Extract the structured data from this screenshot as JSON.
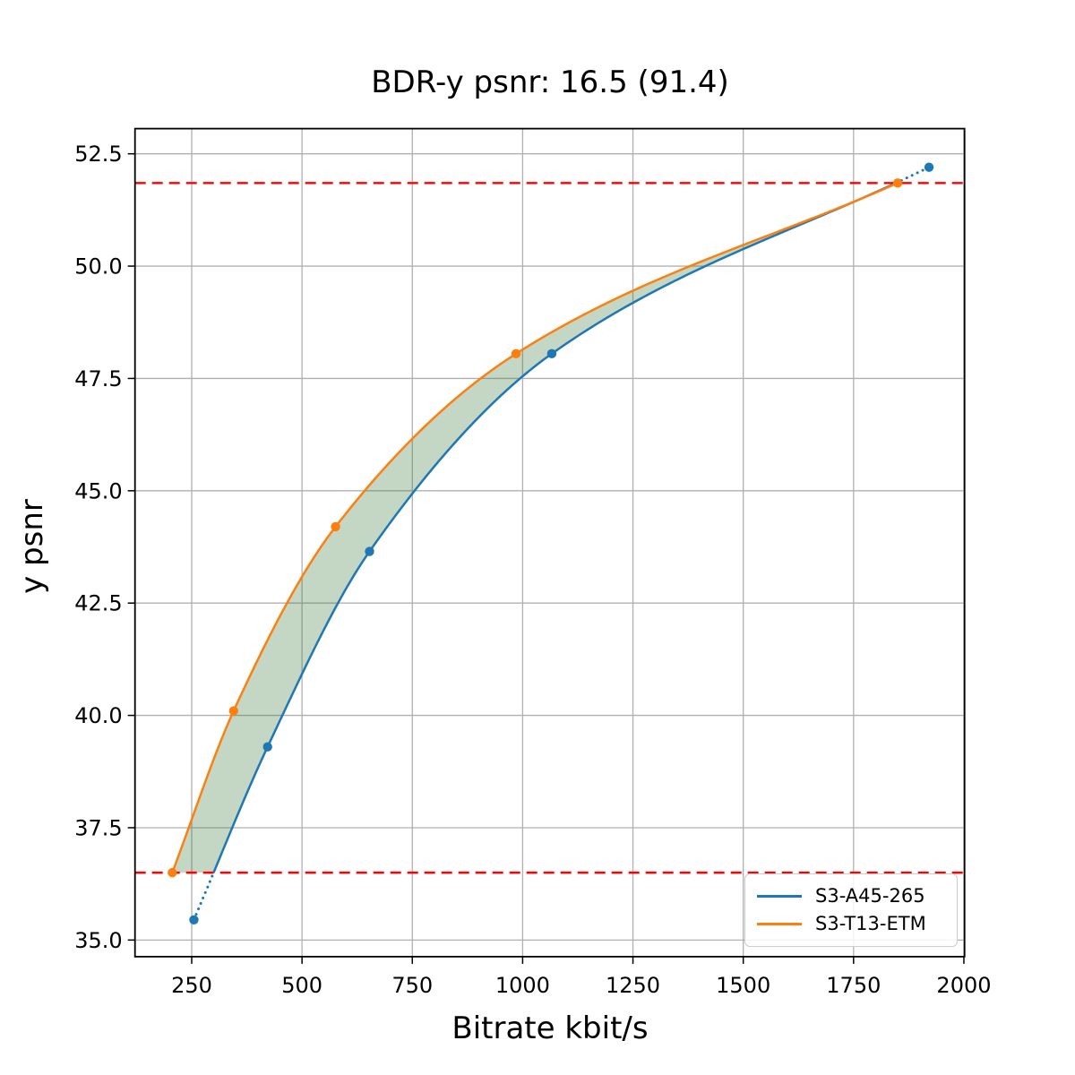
{
  "chart_data": {
    "type": "line",
    "title": "BDR-y psnr: 16.5 (91.4)",
    "xlabel": "Bitrate kbit/s",
    "ylabel": "y psnr",
    "xlim": [
      121.5,
      2001.5
    ],
    "ylim": [
      34.63,
      53.06
    ],
    "grid": true,
    "xticks": [
      250,
      500,
      750,
      1000,
      1250,
      1500,
      1750,
      2000
    ],
    "xtick_labels": [
      "250",
      "500",
      "750",
      "1000",
      "1250",
      "1500",
      "1750",
      "2000"
    ],
    "yticks": [
      35.0,
      37.5,
      40.0,
      42.5,
      45.0,
      47.5,
      50.0,
      52.5
    ],
    "ytick_labels": [
      "35.0",
      "37.5",
      "40.0",
      "42.5",
      "45.0",
      "47.5",
      "50.0",
      "52.5"
    ],
    "legend_position": "lower right",
    "series": [
      {
        "name": "S3-A45-265",
        "color": "#1f77b4",
        "marker": "circle",
        "x": [
          255,
          422,
          653,
          1066,
          1921
        ],
        "y": [
          35.45,
          39.3,
          43.65,
          48.05,
          52.2
        ]
      },
      {
        "name": "S3-T13-ETM",
        "color": "#ff7f0e",
        "marker": "circle",
        "x": [
          206,
          345,
          576,
          985,
          1850
        ],
        "y": [
          36.5,
          40.1,
          44.2,
          48.05,
          51.85
        ]
      }
    ],
    "overlap_hlines": {
      "values": [
        36.5,
        51.85
      ],
      "color": "#ff0000",
      "style": "dashed"
    },
    "fill_between": {
      "color": "#3c783c",
      "opacity": 0.3
    }
  }
}
